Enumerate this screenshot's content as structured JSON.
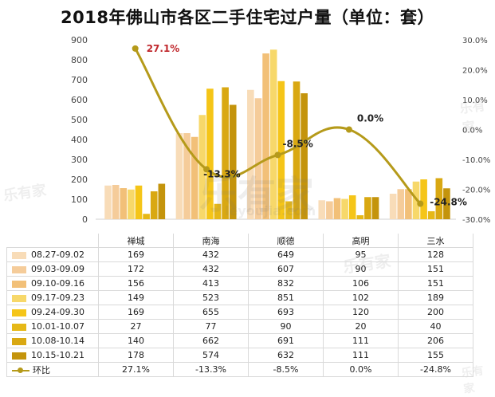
{
  "title": "2018年佛山市各区二手住宅过户量（单位：套）",
  "watermarks": [
    "乐有家",
    "乐有家",
    "乐有家",
    "乐有家",
    "乐有家",
    "leyoujia.com"
  ],
  "chart_data": {
    "type": "bar",
    "categories": [
      "禅城",
      "南海",
      "顺德",
      "高明",
      "三水"
    ],
    "ylim": [
      0,
      900
    ],
    "yticks": [
      "0",
      "100",
      "200",
      "300",
      "400",
      "500",
      "600",
      "700",
      "800",
      "900"
    ],
    "y2lim": [
      -30,
      30
    ],
    "y2ticks": [
      "-30.0%",
      "-20.0%",
      "-10.0%",
      "0.0%",
      "10.0%",
      "20.0%",
      "30.0%"
    ],
    "series": [
      {
        "name": "08.27-09.02",
        "color": "#f8dcb8",
        "values": [
          169,
          432,
          649,
          95,
          128
        ]
      },
      {
        "name": "09.03-09.09",
        "color": "#f5cc9a",
        "values": [
          172,
          432,
          607,
          90,
          151
        ]
      },
      {
        "name": "09.10-09.16",
        "color": "#f2c078",
        "values": [
          156,
          413,
          832,
          106,
          151
        ]
      },
      {
        "name": "09.17-09.23",
        "color": "#f7d86a",
        "values": [
          149,
          523,
          851,
          102,
          189
        ]
      },
      {
        "name": "09.24-09.30",
        "color": "#f5c518",
        "values": [
          169,
          655,
          693,
          120,
          200
        ]
      },
      {
        "name": "10.01-10.07",
        "color": "#e6b817",
        "values": [
          27,
          77,
          90,
          20,
          40
        ]
      },
      {
        "name": "10.08-10.14",
        "color": "#d9a812",
        "values": [
          140,
          662,
          691,
          111,
          206
        ]
      },
      {
        "name": "10.15-10.21",
        "color": "#c4940c",
        "values": [
          178,
          574,
          632,
          111,
          155
        ]
      }
    ],
    "line_series": {
      "name": "环比",
      "color": "#b59a1a",
      "values": [
        27.1,
        -13.3,
        -8.5,
        0.0,
        -24.8
      ],
      "labels": [
        "27.1%",
        "-13.3%",
        "-8.5%",
        "0.0%",
        "-24.8%"
      ]
    }
  }
}
